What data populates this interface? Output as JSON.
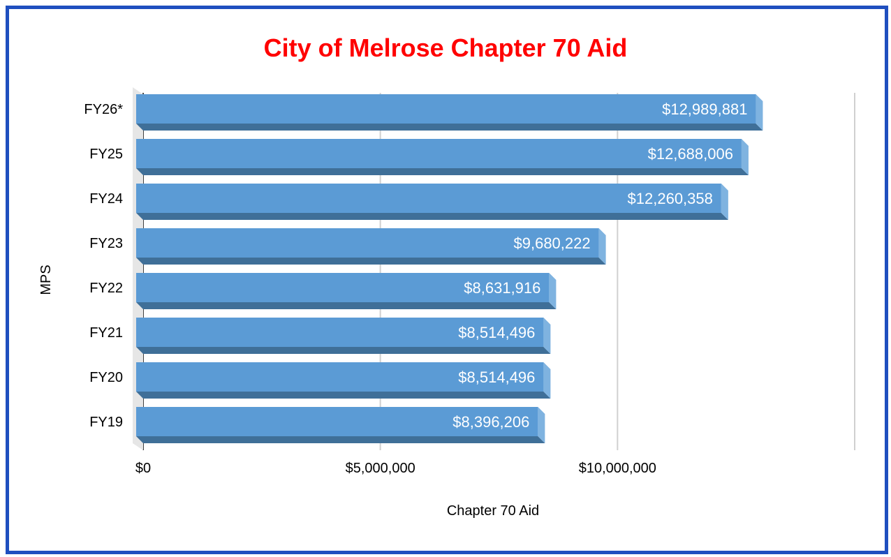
{
  "chart_data": {
    "type": "bar",
    "orientation": "horizontal",
    "title": "City of Melrose Chapter 70 Aid",
    "xlabel": "Chapter 70 Aid",
    "ylabel": "MPS",
    "categories": [
      "FY26*",
      "FY25",
      "FY24",
      "FY23",
      "FY22",
      "FY21",
      "FY20",
      "FY19"
    ],
    "values": [
      12989881,
      12688006,
      12260358,
      9680222,
      8631916,
      8514496,
      8514496,
      8396206
    ],
    "data_labels": [
      "$12,989,881",
      "$12,688,006",
      "$12,260,358",
      "$9,680,222",
      "$8,631,916",
      "$8,514,496",
      "$8,514,496",
      "$8,396,206"
    ],
    "xlim": [
      0,
      15000000
    ],
    "x_ticks": [
      0,
      5000000,
      10000000
    ],
    "x_tick_labels": [
      "$0",
      "$5,000,000",
      "$10,000,000"
    ],
    "grid": true,
    "colors": {
      "title": "#ff0000",
      "bar_front": "#5b9bd5",
      "bar_bottom": "#3f6f98",
      "bar_side": "#7fb3e0",
      "frame": "#1f4fbf",
      "gridline": "#d0d0d0"
    }
  }
}
